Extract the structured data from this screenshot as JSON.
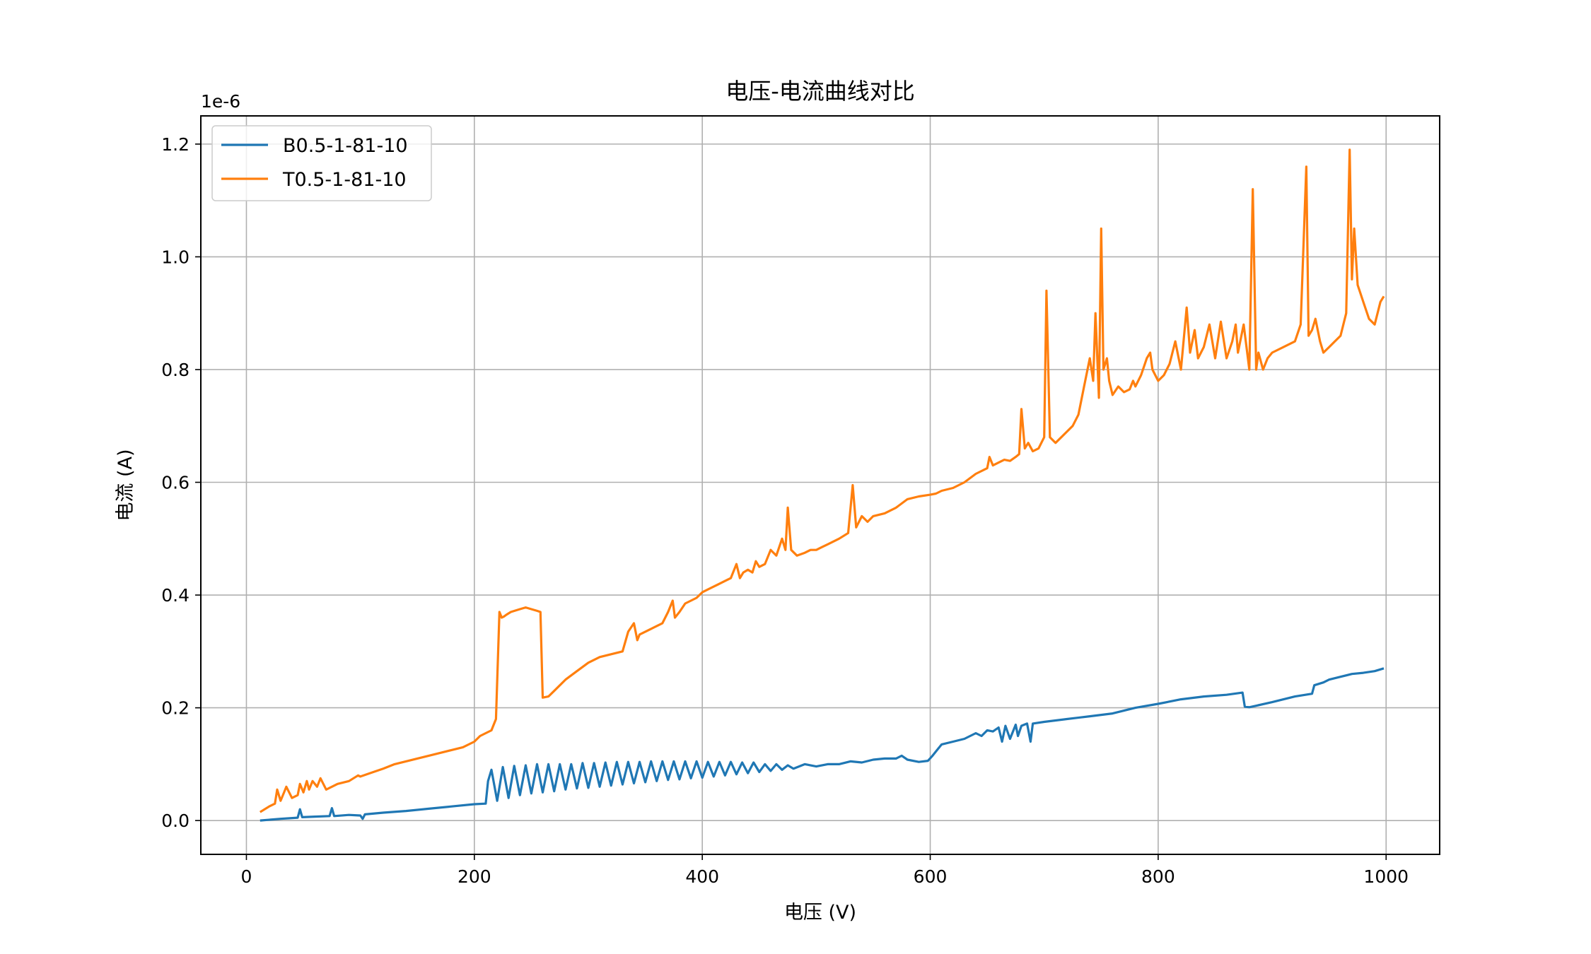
{
  "chart_data": {
    "type": "line",
    "title": "电压-电流曲线对比",
    "xlabel": "电压 (V)",
    "ylabel": "电流 (A)",
    "y_offset_label": "1e-6",
    "xlim": [
      -40,
      1047
    ],
    "ylim": [
      -0.06,
      1.25
    ],
    "xticks": [
      0,
      200,
      400,
      600,
      800,
      1000
    ],
    "yticks": [
      0.0,
      0.2,
      0.4,
      0.6,
      0.8,
      1.0,
      1.2
    ],
    "xtick_labels": [
      "0",
      "200",
      "400",
      "600",
      "800",
      "1000"
    ],
    "ytick_labels": [
      "0.0",
      "0.2",
      "0.4",
      "0.6",
      "0.8",
      "1.0",
      "1.2"
    ],
    "grid": true,
    "legend_position": "top-left",
    "series": [
      {
        "name": "B0.5-1-81-10",
        "color": "#1f77b4",
        "x": [
          12,
          30,
          45,
          47,
          49,
          60,
          73,
          75,
          77,
          90,
          100,
          102,
          104,
          120,
          140,
          160,
          180,
          200,
          210,
          212,
          215,
          220,
          225,
          230,
          235,
          240,
          245,
          250,
          255,
          260,
          265,
          270,
          275,
          280,
          285,
          290,
          295,
          300,
          305,
          310,
          315,
          320,
          325,
          330,
          335,
          340,
          345,
          350,
          355,
          360,
          365,
          370,
          375,
          380,
          385,
          390,
          395,
          400,
          405,
          410,
          415,
          420,
          425,
          430,
          435,
          440,
          445,
          450,
          455,
          460,
          465,
          470,
          475,
          480,
          490,
          500,
          510,
          520,
          530,
          540,
          550,
          560,
          570,
          575,
          580,
          590,
          598,
          602,
          606,
          610,
          620,
          630,
          640,
          645,
          650,
          655,
          660,
          663,
          666,
          670,
          675,
          677,
          680,
          685,
          688,
          690,
          700,
          720,
          740,
          760,
          780,
          800,
          820,
          840,
          860,
          874,
          876,
          880,
          900,
          920,
          935,
          937,
          945,
          950,
          960,
          970,
          980,
          990,
          998
        ],
        "y": [
          0.0,
          0.003,
          0.005,
          0.02,
          0.006,
          0.007,
          0.008,
          0.022,
          0.008,
          0.01,
          0.009,
          0.003,
          0.011,
          0.014,
          0.017,
          0.021,
          0.025,
          0.029,
          0.03,
          0.07,
          0.09,
          0.035,
          0.095,
          0.04,
          0.097,
          0.045,
          0.098,
          0.048,
          0.1,
          0.05,
          0.1,
          0.052,
          0.1,
          0.055,
          0.1,
          0.057,
          0.102,
          0.058,
          0.102,
          0.06,
          0.103,
          0.062,
          0.104,
          0.064,
          0.104,
          0.066,
          0.104,
          0.068,
          0.105,
          0.07,
          0.105,
          0.072,
          0.105,
          0.073,
          0.105,
          0.075,
          0.105,
          0.076,
          0.104,
          0.078,
          0.104,
          0.08,
          0.104,
          0.082,
          0.103,
          0.084,
          0.103,
          0.086,
          0.1,
          0.088,
          0.1,
          0.09,
          0.098,
          0.092,
          0.1,
          0.096,
          0.1,
          0.1,
          0.105,
          0.103,
          0.108,
          0.11,
          0.11,
          0.115,
          0.108,
          0.104,
          0.106,
          0.115,
          0.125,
          0.135,
          0.14,
          0.145,
          0.155,
          0.15,
          0.16,
          0.158,
          0.165,
          0.14,
          0.168,
          0.145,
          0.17,
          0.15,
          0.168,
          0.172,
          0.14,
          0.172,
          0.175,
          0.18,
          0.185,
          0.19,
          0.2,
          0.207,
          0.215,
          0.22,
          0.223,
          0.227,
          0.202,
          0.201,
          0.21,
          0.22,
          0.225,
          0.24,
          0.245,
          0.25,
          0.255,
          0.26,
          0.262,
          0.265,
          0.27
        ]
      },
      {
        "name": "T0.5-1-81-10",
        "color": "#ff7f0e",
        "x": [
          12,
          20,
          25,
          27,
          30,
          33,
          35,
          40,
          45,
          47,
          50,
          53,
          55,
          58,
          62,
          65,
          70,
          80,
          90,
          98,
          100,
          110,
          120,
          130,
          140,
          150,
          160,
          170,
          180,
          190,
          200,
          205,
          210,
          215,
          219,
          222,
          224,
          226,
          228,
          232,
          240,
          245,
          250,
          255,
          258,
          260,
          265,
          270,
          280,
          290,
          300,
          310,
          320,
          330,
          335,
          340,
          343,
          345,
          350,
          355,
          360,
          365,
          370,
          374,
          376,
          380,
          385,
          390,
          395,
          400,
          405,
          410,
          415,
          420,
          425,
          430,
          433,
          436,
          440,
          444,
          447,
          450,
          455,
          460,
          465,
          470,
          473,
          475,
          478,
          483,
          490,
          495,
          500,
          505,
          510,
          520,
          528,
          532,
          535,
          540,
          545,
          550,
          560,
          570,
          580,
          590,
          600,
          605,
          610,
          620,
          630,
          640,
          650,
          652,
          655,
          660,
          665,
          670,
          675,
          678,
          680,
          683,
          686,
          690,
          695,
          700,
          702,
          705,
          710,
          715,
          720,
          725,
          730,
          735,
          740,
          743,
          745,
          748,
          750,
          752,
          755,
          757,
          760,
          765,
          770,
          775,
          778,
          780,
          785,
          790,
          793,
          795,
          800,
          805,
          810,
          815,
          820,
          825,
          828,
          832,
          835,
          840,
          845,
          850,
          855,
          860,
          865,
          868,
          870,
          875,
          880,
          883,
          886,
          888,
          892,
          896,
          900,
          910,
          920,
          925,
          930,
          932,
          935,
          938,
          942,
          945,
          950,
          955,
          960,
          965,
          968,
          970,
          972,
          975,
          980,
          985,
          990,
          995,
          998
        ],
        "y": [
          0.015,
          0.025,
          0.03,
          0.055,
          0.035,
          0.05,
          0.06,
          0.04,
          0.045,
          0.065,
          0.05,
          0.07,
          0.055,
          0.07,
          0.06,
          0.075,
          0.055,
          0.065,
          0.07,
          0.08,
          0.078,
          0.085,
          0.092,
          0.1,
          0.105,
          0.11,
          0.115,
          0.12,
          0.125,
          0.13,
          0.14,
          0.15,
          0.155,
          0.16,
          0.18,
          0.37,
          0.36,
          0.362,
          0.365,
          0.37,
          0.375,
          0.378,
          0.375,
          0.372,
          0.37,
          0.218,
          0.22,
          0.23,
          0.25,
          0.265,
          0.28,
          0.29,
          0.295,
          0.3,
          0.335,
          0.35,
          0.32,
          0.33,
          0.335,
          0.34,
          0.345,
          0.35,
          0.37,
          0.39,
          0.36,
          0.37,
          0.385,
          0.39,
          0.395,
          0.405,
          0.41,
          0.415,
          0.42,
          0.425,
          0.43,
          0.455,
          0.43,
          0.44,
          0.445,
          0.44,
          0.46,
          0.45,
          0.455,
          0.48,
          0.47,
          0.5,
          0.48,
          0.555,
          0.48,
          0.47,
          0.475,
          0.48,
          0.48,
          0.485,
          0.49,
          0.5,
          0.51,
          0.595,
          0.52,
          0.54,
          0.53,
          0.54,
          0.545,
          0.555,
          0.57,
          0.575,
          0.578,
          0.58,
          0.585,
          0.59,
          0.6,
          0.615,
          0.625,
          0.645,
          0.63,
          0.635,
          0.64,
          0.638,
          0.645,
          0.65,
          0.73,
          0.66,
          0.67,
          0.655,
          0.66,
          0.68,
          0.94,
          0.68,
          0.67,
          0.68,
          0.69,
          0.7,
          0.72,
          0.77,
          0.82,
          0.78,
          0.9,
          0.75,
          1.05,
          0.8,
          0.82,
          0.78,
          0.755,
          0.77,
          0.76,
          0.765,
          0.78,
          0.77,
          0.79,
          0.82,
          0.83,
          0.8,
          0.78,
          0.79,
          0.81,
          0.85,
          0.8,
          0.91,
          0.83,
          0.87,
          0.82,
          0.84,
          0.88,
          0.82,
          0.885,
          0.82,
          0.85,
          0.88,
          0.83,
          0.88,
          0.8,
          1.12,
          0.8,
          0.83,
          0.8,
          0.82,
          0.83,
          0.84,
          0.85,
          0.88,
          1.16,
          0.86,
          0.87,
          0.89,
          0.85,
          0.83,
          0.84,
          0.85,
          0.86,
          0.9,
          1.19,
          0.96,
          1.05,
          0.95,
          0.92,
          0.89,
          0.88,
          0.92,
          0.93
        ]
      }
    ]
  }
}
